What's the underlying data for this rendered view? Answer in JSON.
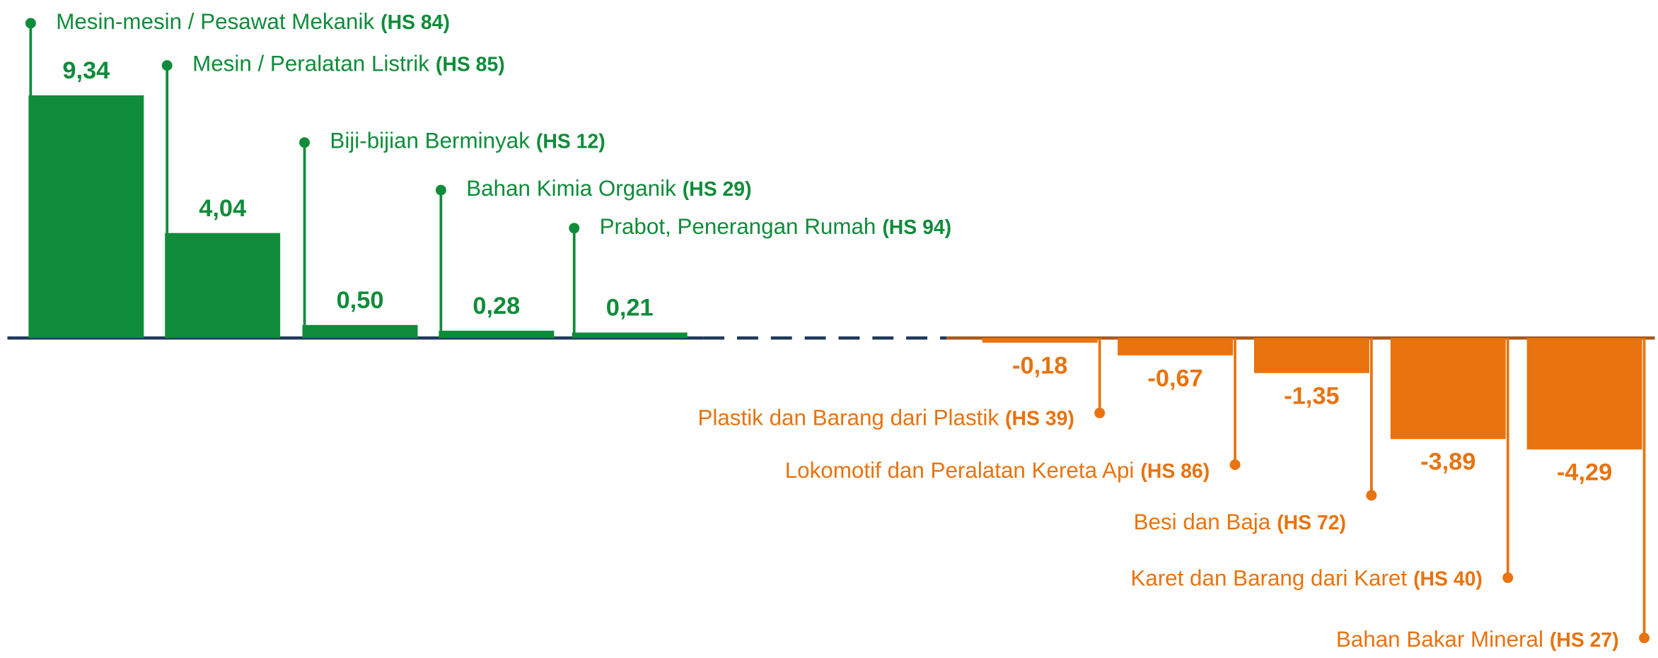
{
  "chart_data": {
    "type": "bar",
    "categories": [
      "Mesin-mesin / Pesawat Mekanik",
      "Mesin / Peralatan Listrik",
      "Biji-bijian Berminyak",
      "Bahan Kimia Organik",
      "Prabot, Penerangan Rumah",
      "Plastik dan Barang dari Plastik",
      "Lokomotif dan Peralatan Kereta Api",
      "Besi dan Baja",
      "Karet dan Barang dari Karet",
      "Bahan Bakar Mineral"
    ],
    "codes": [
      "(HS 84)",
      "(HS 85)",
      "(HS 12)",
      "(HS 29)",
      "(HS 94)",
      "(HS 39)",
      "(HS 86)",
      "(HS 72)",
      "(HS 40)",
      "(HS 27)"
    ],
    "values": [
      9.34,
      4.04,
      0.5,
      0.28,
      0.21,
      -0.18,
      -0.67,
      -1.35,
      -3.89,
      -4.29
    ],
    "value_labels": [
      "9,34",
      "4,04",
      "0,50",
      "0,28",
      "0,21",
      "-0,18",
      "-0,67",
      "-1,35",
      "-3,89",
      "-4,29"
    ],
    "positive_color": "#0f8c3a",
    "negative_color": "#e8730f"
  }
}
